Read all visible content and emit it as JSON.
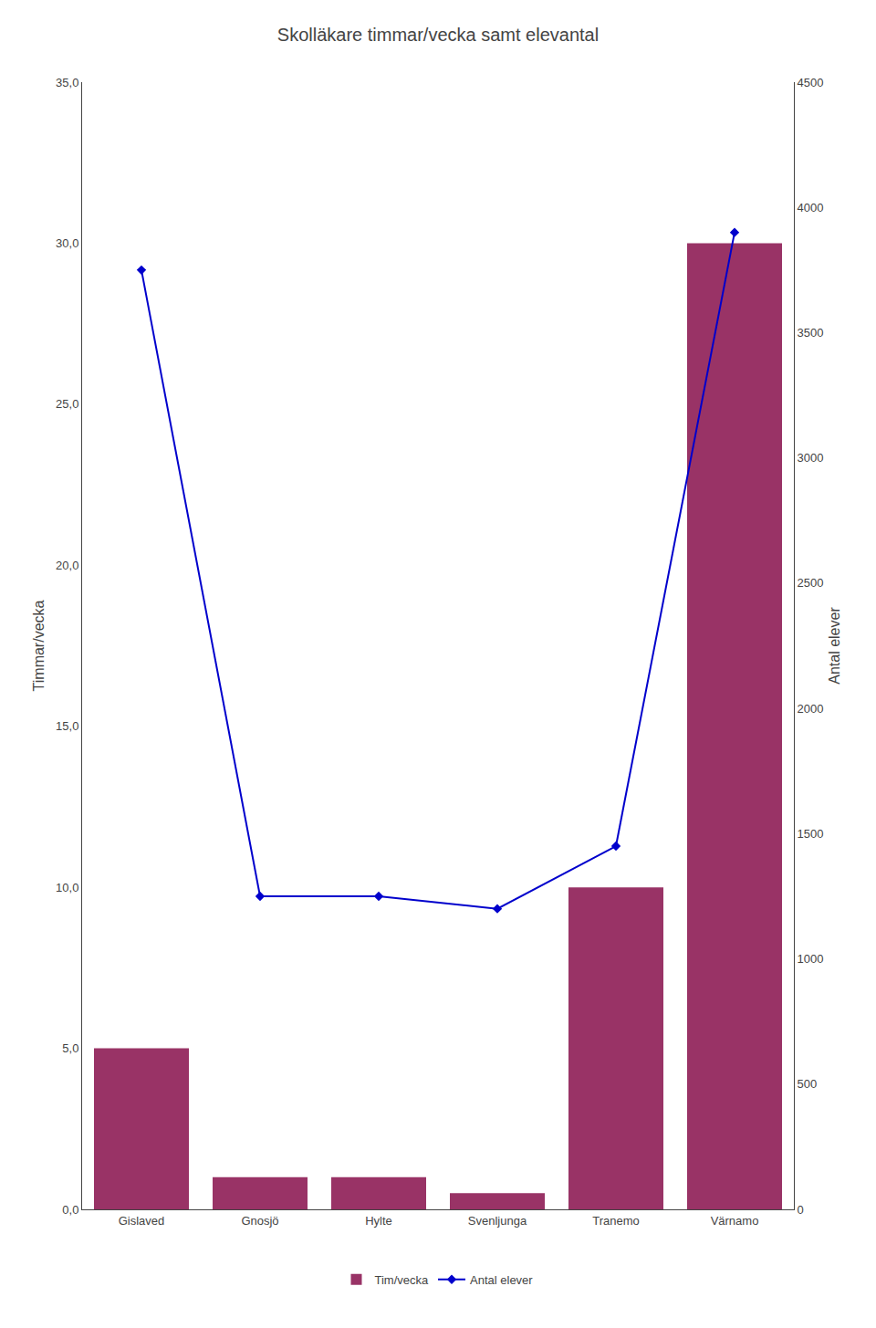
{
  "chart_data": {
    "type": "bar",
    "title": "Skolläkare timmar/vecka samt elevantal",
    "categories": [
      "Gislaved",
      "Gnosjö",
      "Hylte",
      "Svenljunga",
      "Tranemo",
      "Värnamo"
    ],
    "series": [
      {
        "name": "Tim/vecka",
        "type": "bar",
        "color": "#993366",
        "values": [
          5,
          1,
          1,
          0.5,
          10,
          30
        ]
      },
      {
        "name": "Antal elever",
        "type": "line",
        "color": "#0000cc",
        "marker": "diamond",
        "line_style": "solid",
        "axis": "y2",
        "values": [
          3750,
          1250,
          1250,
          1200,
          1450,
          3900
        ]
      }
    ],
    "ylabel": "Timmar/vecka",
    "y2label": "Antal elever",
    "ylim": [
      0,
      35
    ],
    "yticks": [
      {
        "value": 0,
        "label": "0,0"
      },
      {
        "value": 5,
        "label": "5,0"
      },
      {
        "value": 10,
        "label": "10,0"
      },
      {
        "value": 15,
        "label": "15,0"
      },
      {
        "value": 20,
        "label": "20,0"
      },
      {
        "value": 25,
        "label": "25,0"
      },
      {
        "value": 30,
        "label": "30,0"
      },
      {
        "value": 35,
        "label": "35,0"
      }
    ],
    "y2lim": [
      0,
      4500
    ],
    "y2ticks": [
      0,
      500,
      1000,
      1500,
      2000,
      2500,
      3000,
      3500,
      4000,
      4500
    ],
    "grid": false,
    "legend": "bottom"
  }
}
